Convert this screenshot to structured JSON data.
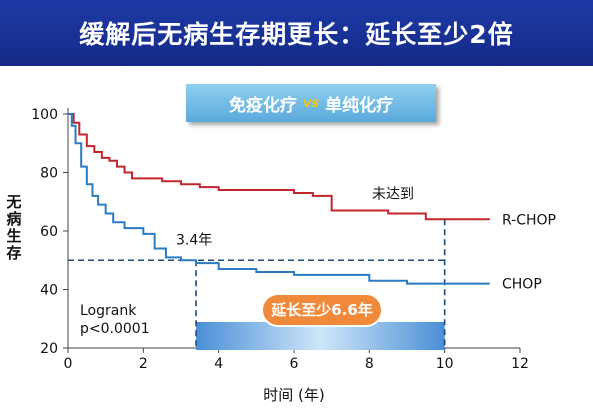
{
  "title": "缓解后无病生存期更长：延长至少2倍",
  "banner": {
    "left": "免疫化疗",
    "vs": "vs",
    "right": "单纯化疗"
  },
  "colors": {
    "title_bg": "#1a35a0",
    "rchop": "#c0262c",
    "chop": "#2b7cc3",
    "dashed": "#1f4b7a",
    "highlight_bar": "#4a8fd6",
    "callout": "#f08a3a"
  },
  "chart_data": {
    "type": "line",
    "title": "",
    "xlabel": "时间 (年)",
    "ylabel": "无病生存",
    "xlim": [
      0,
      12
    ],
    "ylim": [
      20,
      100
    ],
    "xticks": [
      0,
      2,
      4,
      6,
      8,
      10,
      12
    ],
    "yticks": [
      20,
      40,
      60,
      80,
      100
    ],
    "grid": false,
    "series": [
      {
        "name": "R-CHOP",
        "color": "#c0262c",
        "x": [
          0,
          0.15,
          0.3,
          0.5,
          0.7,
          0.9,
          1.1,
          1.3,
          1.5,
          1.7,
          2.0,
          2.5,
          3.0,
          3.5,
          4.0,
          5.0,
          6.0,
          6.5,
          7.0,
          8.0,
          8.5,
          9.0,
          9.5,
          10.0,
          11.2
        ],
        "y": [
          100,
          97,
          93,
          89,
          87,
          85,
          84,
          82,
          80,
          78,
          78,
          77,
          76,
          75,
          74,
          74,
          73,
          72,
          67,
          67,
          66,
          66,
          64,
          64,
          64
        ]
      },
      {
        "name": "CHOP",
        "color": "#2b7cc3",
        "x": [
          0,
          0.1,
          0.2,
          0.35,
          0.5,
          0.65,
          0.8,
          1.0,
          1.2,
          1.5,
          2.0,
          2.3,
          2.6,
          3.0,
          3.4,
          4.0,
          5.0,
          6.0,
          7.0,
          8.0,
          9.0,
          10.0,
          11.2
        ],
        "y": [
          100,
          96,
          90,
          82,
          76,
          72,
          69,
          66,
          63,
          61,
          59,
          54,
          51,
          50,
          49,
          47,
          46,
          45,
          45,
          43,
          42,
          42,
          42
        ]
      }
    ],
    "annotations": {
      "rchop_label": "R-CHOP",
      "chop_label": "CHOP",
      "not_reached": "未达到",
      "median_chop": "3.4年",
      "median_chop_x": 3.4,
      "median_y": 50,
      "rchop_end_x": 10,
      "logrank": "Logrank",
      "pvalue": "p<0.0001",
      "gain": "延长至少6.6年",
      "gain_range": [
        3.4,
        10
      ]
    }
  }
}
